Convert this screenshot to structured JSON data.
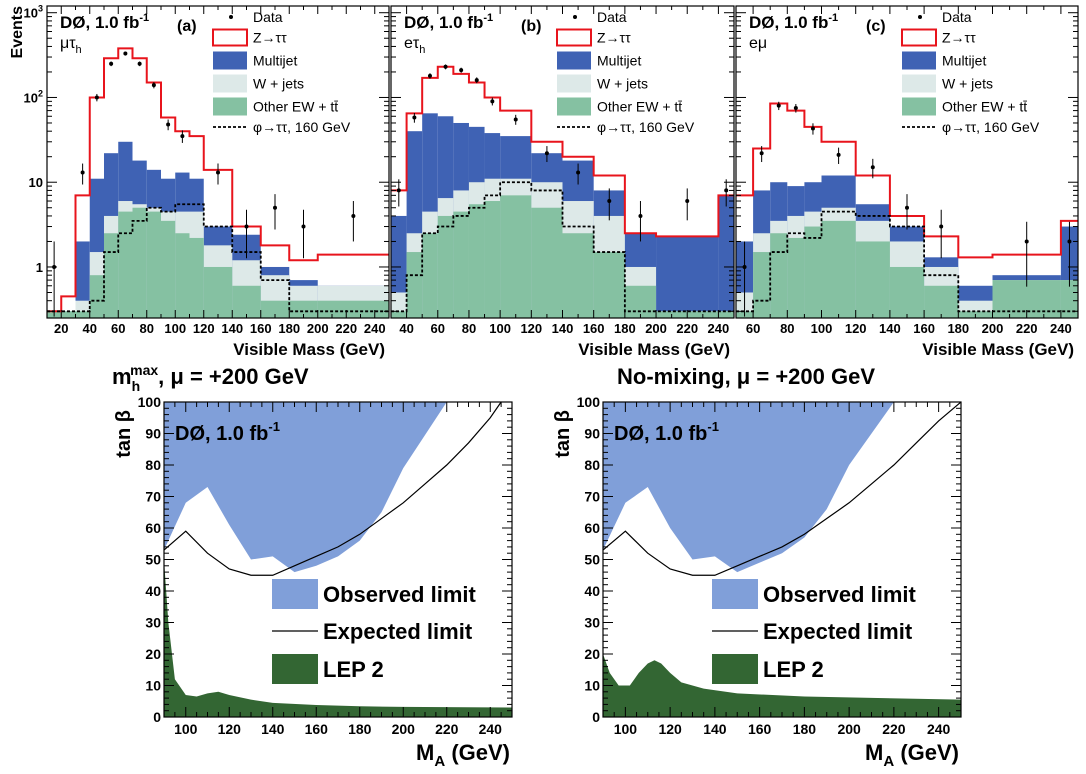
{
  "colors": {
    "ztt": "#e8141c",
    "multijet": "#3f62b4",
    "wjets": "#dde9e8",
    "otherew": "#85c1a2",
    "observed": "#809fd9",
    "lep": "#336633",
    "signal": "#000000"
  },
  "panels_top": [
    {
      "experiment": "DØ, 1.0 fb",
      "lumi_sup": "-1",
      "channel": "μτ",
      "channel_sub": "h",
      "letter": "(a)",
      "ylabel": "Events",
      "xlabel": "Visible Mass (GeV)",
      "xticks": [
        "20",
        "40",
        "60",
        "80",
        "100",
        "120",
        "140",
        "160",
        "180",
        "200",
        "220",
        "240"
      ],
      "yticks": [
        {
          "base": "10",
          "exp": "3"
        },
        {
          "base": "10",
          "exp": "2"
        },
        {
          "base": "10",
          "exp": ""
        },
        {
          "base": "1",
          "exp": ""
        }
      ],
      "legend": [
        "Data",
        "Z→ττ",
        "Multijet",
        "W + jets",
        "Other EW + tt̄",
        "φ→ττ, 160 GeV"
      ]
    },
    {
      "experiment": "DØ, 1.0 fb",
      "lumi_sup": "-1",
      "channel": "eτ",
      "channel_sub": "h",
      "letter": "(b)",
      "xlabel": "Visible Mass (GeV)",
      "xticks": [
        "40",
        "60",
        "80",
        "100",
        "120",
        "140",
        "160",
        "180",
        "200",
        "220",
        "240"
      ],
      "legend": [
        "Data",
        "Z→ττ",
        "Multijet",
        "W + jets",
        "Other EW + tt̄",
        "φ→ττ, 160 GeV"
      ]
    },
    {
      "experiment": "DØ, 1.0 fb",
      "lumi_sup": "-1",
      "channel": "eμ",
      "channel_sub": "",
      "letter": "(c)",
      "xlabel": "Visible Mass (GeV)",
      "xticks": [
        "60",
        "80",
        "100",
        "120",
        "140",
        "160",
        "180",
        "200",
        "220",
        "240"
      ],
      "legend": [
        "Data",
        "Z→ττ",
        "Multijet",
        "W + jets",
        "Other EW + tt̄",
        "φ→ττ, 160 GeV"
      ]
    }
  ],
  "panels_bottom": [
    {
      "title_main": "m",
      "title_sub": "h",
      "title_sup": "max",
      "title_rest": ", μ = +200 GeV",
      "experiment": "DØ, 1.0 fb",
      "lumi_sup": "-1",
      "ylabel": "tan β",
      "xlabel": "M",
      "xlabel_sub": "A",
      "xlabel_rest": " (GeV)",
      "xticks": [
        "100",
        "120",
        "140",
        "160",
        "180",
        "200",
        "220",
        "240"
      ],
      "yticks": [
        "0",
        "10",
        "20",
        "30",
        "40",
        "50",
        "60",
        "70",
        "80",
        "90",
        "100"
      ],
      "legend": [
        "Observed limit",
        "Expected limit",
        "LEP 2"
      ]
    },
    {
      "title_main": "No-mixing",
      "title_sub": "",
      "title_sup": "",
      "title_rest": ", μ = +200 GeV",
      "experiment": "DØ, 1.0 fb",
      "lumi_sup": "-1",
      "ylabel": "tan β",
      "xlabel": "M",
      "xlabel_sub": "A",
      "xlabel_rest": " (GeV)",
      "xticks": [
        "100",
        "120",
        "140",
        "160",
        "180",
        "200",
        "220",
        "240"
      ],
      "yticks": [
        "0",
        "10",
        "20",
        "30",
        "40",
        "50",
        "60",
        "70",
        "80",
        "90",
        "100"
      ],
      "legend": [
        "Observed limit",
        "Expected limit",
        "LEP 2"
      ]
    }
  ],
  "chart_data": [
    {
      "type": "bar",
      "panel": "(a)",
      "stacked": true,
      "log_y": true,
      "xlabel": "Visible Mass (GeV)",
      "ylabel": "Events",
      "xlim": [
        10,
        250
      ],
      "ylim": [
        0.25,
        1200
      ],
      "bin_edges": [
        10,
        20,
        30,
        40,
        50,
        60,
        70,
        80,
        90,
        100,
        110,
        120,
        140,
        160,
        180,
        200,
        250
      ],
      "series": [
        {
          "name": "Other EW + tt̄",
          "values": [
            0.3,
            0.3,
            0.3,
            0.8,
            2.5,
            4.5,
            5.0,
            4.5,
            3.5,
            2.5,
            2.2,
            1.0,
            0.6,
            0.4,
            0.4,
            0.4
          ]
        },
        {
          "name": "W + jets",
          "values": [
            0.3,
            0.3,
            0.4,
            1.5,
            4.0,
            6.0,
            5.5,
            5.0,
            4.5,
            4.5,
            4.5,
            1.8,
            1.2,
            0.8,
            0.6,
            0.6
          ]
        },
        {
          "name": "Multijet",
          "values": [
            0.3,
            0.3,
            2.0,
            11,
            22,
            30,
            18,
            14,
            11,
            13,
            11,
            3.0,
            2.4,
            1.0,
            0.7,
            0.6
          ]
        },
        {
          "name": "Z→ττ",
          "values": [
            0.3,
            0.45,
            7.0,
            100,
            290,
            380,
            290,
            150,
            58,
            40,
            35,
            14,
            3.0,
            1.8,
            1.2,
            1.4
          ]
        }
      ],
      "signal": {
        "name": "φ→ττ, 160 GeV",
        "values": [
          0.3,
          0.3,
          0.3,
          0.4,
          1.5,
          2.5,
          3.5,
          5.0,
          4.5,
          5.5,
          5.5,
          3.0,
          1.5,
          0.7,
          0.3,
          0.3
        ]
      },
      "data": [
        {
          "x": 15,
          "y": 1.0
        },
        {
          "x": 35,
          "y": 13
        },
        {
          "x": 45,
          "y": 100
        },
        {
          "x": 55,
          "y": 250
        },
        {
          "x": 65,
          "y": 330
        },
        {
          "x": 75,
          "y": 250
        },
        {
          "x": 85,
          "y": 140
        },
        {
          "x": 95,
          "y": 48
        },
        {
          "x": 105,
          "y": 35
        },
        {
          "x": 130,
          "y": 13
        },
        {
          "x": 150,
          "y": 3.0
        },
        {
          "x": 170,
          "y": 5.0
        },
        {
          "x": 190,
          "y": 3.0
        },
        {
          "x": 225,
          "y": 4.0
        }
      ]
    },
    {
      "type": "bar",
      "panel": "(b)",
      "stacked": true,
      "log_y": true,
      "xlabel": "Visible Mass (GeV)",
      "xlim": [
        30,
        250
      ],
      "ylim": [
        0.25,
        1200
      ],
      "bin_edges": [
        30,
        40,
        50,
        60,
        70,
        80,
        90,
        100,
        120,
        140,
        160,
        180,
        200,
        240,
        250
      ],
      "series": [
        {
          "name": "Other EW + tt̄",
          "values": [
            0.3,
            1.5,
            2.5,
            4.0,
            4.5,
            5.5,
            6.0,
            7.0,
            5.0,
            2.5,
            1.5,
            0.6,
            0.3,
            0.3
          ]
        },
        {
          "name": "W + jets",
          "values": [
            0.5,
            2.5,
            4.5,
            6.5,
            8.0,
            10,
            11,
            11,
            10,
            6.0,
            4.0,
            1.0,
            0.3,
            0.3
          ]
        },
        {
          "name": "Multijet",
          "values": [
            4.0,
            40,
            65,
            60,
            50,
            45,
            38,
            35,
            22,
            18,
            8.0,
            2.5,
            2.3,
            7.0
          ]
        },
        {
          "name": "Z→ττ",
          "values": [
            8.0,
            65,
            170,
            230,
            190,
            150,
            100,
            70,
            30,
            20,
            12,
            2.5,
            2.3,
            7.0
          ]
        }
      ],
      "signal": {
        "name": "φ→ττ, 160 GeV",
        "values": [
          0.3,
          0.8,
          2.5,
          3.0,
          4.0,
          5.0,
          7.0,
          10,
          8.0,
          3.0,
          1.5,
          0.3,
          0.3,
          0.3
        ]
      },
      "data": [
        {
          "x": 35,
          "y": 8.0
        },
        {
          "x": 45,
          "y": 58
        },
        {
          "x": 55,
          "y": 180
        },
        {
          "x": 65,
          "y": 230
        },
        {
          "x": 75,
          "y": 210
        },
        {
          "x": 85,
          "y": 160
        },
        {
          "x": 95,
          "y": 90
        },
        {
          "x": 110,
          "y": 55
        },
        {
          "x": 130,
          "y": 22
        },
        {
          "x": 150,
          "y": 13
        },
        {
          "x": 170,
          "y": 6.0
        },
        {
          "x": 190,
          "y": 4.0
        },
        {
          "x": 220,
          "y": 6.0
        },
        {
          "x": 245,
          "y": 8.0
        }
      ]
    },
    {
      "type": "bar",
      "panel": "(c)",
      "stacked": true,
      "log_y": true,
      "xlabel": "Visible Mass (GeV)",
      "xlim": [
        50,
        250
      ],
      "ylim": [
        0.25,
        1200
      ],
      "bin_edges": [
        50,
        60,
        70,
        80,
        90,
        100,
        120,
        140,
        160,
        180,
        200,
        240,
        250
      ],
      "series": [
        {
          "name": "Other EW + tt̄",
          "values": [
            0.3,
            1.5,
            2.5,
            2.2,
            3.0,
            3.5,
            2.0,
            1.0,
            0.6,
            0.3,
            0.7,
            0.7
          ]
        },
        {
          "name": "W + jets",
          "values": [
            0.5,
            2.5,
            3.5,
            4.0,
            4.5,
            5.0,
            3.5,
            2.0,
            1.0,
            0.4,
            0.7,
            0.7
          ]
        },
        {
          "name": "Multijet",
          "values": [
            2.0,
            8.0,
            10,
            9.0,
            10,
            12,
            5.5,
            3.0,
            1.3,
            0.6,
            0.8,
            3.0
          ]
        },
        {
          "name": "Z→ττ",
          "values": [
            7.0,
            25,
            85,
            70,
            45,
            30,
            12,
            4.0,
            2.3,
            1.3,
            1.4,
            3.5
          ]
        }
      ],
      "signal": {
        "name": "φ→ττ, 160 GeV",
        "values": [
          0.3,
          0.4,
          1.5,
          2.5,
          2.2,
          4.5,
          4.0,
          3.0,
          0.8,
          0.3,
          0.3,
          0.3
        ]
      },
      "data": [
        {
          "x": 55,
          "y": 1.0
        },
        {
          "x": 65,
          "y": 22
        },
        {
          "x": 75,
          "y": 80
        },
        {
          "x": 85,
          "y": 75
        },
        {
          "x": 95,
          "y": 43
        },
        {
          "x": 110,
          "y": 21
        },
        {
          "x": 130,
          "y": 15
        },
        {
          "x": 150,
          "y": 5.0
        },
        {
          "x": 170,
          "y": 3.0
        },
        {
          "x": 220,
          "y": 2.0
        },
        {
          "x": 245,
          "y": 2.0
        }
      ]
    },
    {
      "type": "area",
      "panel": "m_h^max, μ = +200 GeV",
      "xlabel": "M_A (GeV)",
      "ylabel": "tan β",
      "xlim": [
        90,
        250
      ],
      "ylim": [
        0,
        100
      ],
      "series": [
        {
          "name": "Observed limit",
          "points": [
            [
              90,
              53
            ],
            [
              100,
              68
            ],
            [
              110,
              73
            ],
            [
              120,
              61
            ],
            [
              130,
              50
            ],
            [
              140,
              51
            ],
            [
              150,
              46
            ],
            [
              160,
              48
            ],
            [
              170,
              51
            ],
            [
              180,
              56
            ],
            [
              190,
              65
            ],
            [
              200,
              79
            ],
            [
              220,
              100
            ]
          ]
        },
        {
          "name": "Expected limit",
          "points": [
            [
              90,
              53
            ],
            [
              100,
              59
            ],
            [
              110,
              52
            ],
            [
              120,
              47
            ],
            [
              130,
              45
            ],
            [
              140,
              45
            ],
            [
              150,
              48
            ],
            [
              160,
              51
            ],
            [
              170,
              54
            ],
            [
              180,
              58
            ],
            [
              190,
              63
            ],
            [
              200,
              68
            ],
            [
              210,
              74
            ],
            [
              220,
              80
            ],
            [
              230,
              87
            ],
            [
              240,
              95
            ],
            [
              245,
              100
            ]
          ]
        },
        {
          "name": "LEP 2",
          "points": [
            [
              90,
              50
            ],
            [
              92,
              30
            ],
            [
              95,
              12
            ],
            [
              100,
              7
            ],
            [
              105,
              6.5
            ],
            [
              110,
              7.5
            ],
            [
              115,
              8
            ],
            [
              120,
              7
            ],
            [
              130,
              5.5
            ],
            [
              140,
              4.5
            ],
            [
              160,
              3.8
            ],
            [
              180,
              3.4
            ],
            [
              200,
              3.2
            ],
            [
              250,
              3.0
            ]
          ]
        }
      ]
    },
    {
      "type": "area",
      "panel": "No-mixing, μ = +200 GeV",
      "xlabel": "M_A (GeV)",
      "ylabel": "tan β",
      "xlim": [
        90,
        250
      ],
      "ylim": [
        0,
        100
      ],
      "series": [
        {
          "name": "Observed limit",
          "points": [
            [
              90,
              53
            ],
            [
              100,
              68
            ],
            [
              110,
              73
            ],
            [
              120,
              60
            ],
            [
              130,
              50
            ],
            [
              140,
              51
            ],
            [
              150,
              46
            ],
            [
              160,
              49
            ],
            [
              170,
              52
            ],
            [
              180,
              57
            ],
            [
              190,
              66
            ],
            [
              200,
              80
            ],
            [
              220,
              100
            ]
          ]
        },
        {
          "name": "Expected limit",
          "points": [
            [
              90,
              53
            ],
            [
              100,
              59
            ],
            [
              110,
              52
            ],
            [
              120,
              47
            ],
            [
              130,
              45
            ],
            [
              140,
              45
            ],
            [
              150,
              48
            ],
            [
              160,
              51
            ],
            [
              170,
              54
            ],
            [
              180,
              58
            ],
            [
              190,
              63
            ],
            [
              200,
              68
            ],
            [
              210,
              74
            ],
            [
              220,
              80
            ],
            [
              230,
              87
            ],
            [
              240,
              94
            ],
            [
              250,
              100
            ]
          ]
        },
        {
          "name": "LEP 2",
          "points": [
            [
              90,
              20
            ],
            [
              93,
              14
            ],
            [
              97,
              10
            ],
            [
              102,
              10
            ],
            [
              106,
              14
            ],
            [
              110,
              17
            ],
            [
              113,
              18
            ],
            [
              116,
              17
            ],
            [
              120,
              14
            ],
            [
              125,
              11
            ],
            [
              135,
              9
            ],
            [
              150,
              7.5
            ],
            [
              180,
              6.5
            ],
            [
              250,
              5.5
            ]
          ]
        }
      ]
    }
  ]
}
